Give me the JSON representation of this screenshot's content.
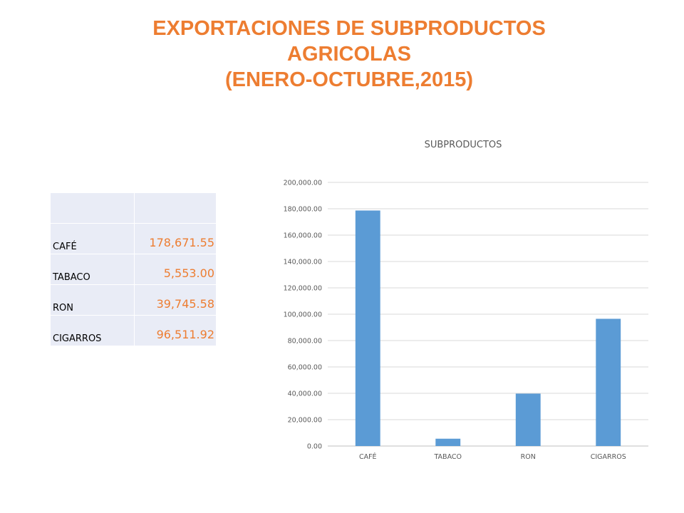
{
  "title": {
    "line1": "EXPORTACIONES  DE SUBPRODUCTOS",
    "line2": "AGRICOLAS",
    "line3": "(ENERO-OCTUBRE,2015)"
  },
  "table": {
    "rows": [
      {
        "label": "CAFÉ",
        "value": "178,671.55"
      },
      {
        "label": "TABACO",
        "value": "5,553.00"
      },
      {
        "label": "RON",
        "value": "39,745.58"
      },
      {
        "label": "CIGARROS",
        "value": "96,511.92"
      }
    ]
  },
  "chart_data": {
    "type": "bar",
    "title": "SUBPRODUCTOS",
    "categories": [
      "CAFÉ",
      "TABACO",
      "RON",
      "CIGARROS"
    ],
    "values": [
      178671.55,
      5553.0,
      39745.58,
      96511.92
    ],
    "ylim": [
      0,
      200000
    ],
    "yticks": [
      "0.00",
      "20,000.00",
      "40,000.00",
      "60,000.00",
      "80,000.00",
      "100,000.00",
      "120,000.00",
      "140,000.00",
      "160,000.00",
      "180,000.00",
      "200,000.00"
    ],
    "xlabel": "",
    "ylabel": "",
    "grid": true,
    "legend": "none",
    "bar_color": "#5b9bd5"
  }
}
